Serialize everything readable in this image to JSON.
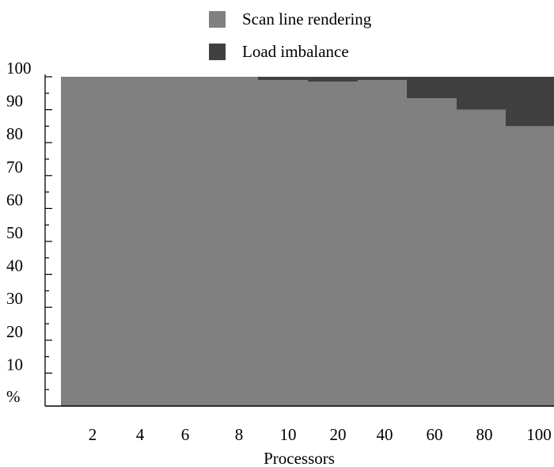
{
  "chart_data": {
    "type": "area",
    "stacked": true,
    "title": "",
    "xlabel": "Processors",
    "ylabel": "%",
    "ylim": [
      0,
      100
    ],
    "y_ticks": [
      10,
      20,
      30,
      40,
      50,
      60,
      70,
      80,
      90,
      100
    ],
    "y_unit_label": "%",
    "categories": [
      "2",
      "4",
      "6",
      "8",
      "10",
      "20",
      "40",
      "60",
      "80",
      "100"
    ],
    "series": [
      {
        "name": "Scan line rendering",
        "color": "#808080",
        "values": [
          100,
          100,
          100,
          100,
          99,
          98.5,
          99,
          93.5,
          90,
          85
        ]
      },
      {
        "name": "Load imbalance",
        "color": "#404040",
        "values": [
          0,
          0,
          0,
          0,
          1,
          1.5,
          1,
          6.5,
          10,
          15
        ]
      }
    ],
    "legend_position": "top",
    "grid": false
  }
}
